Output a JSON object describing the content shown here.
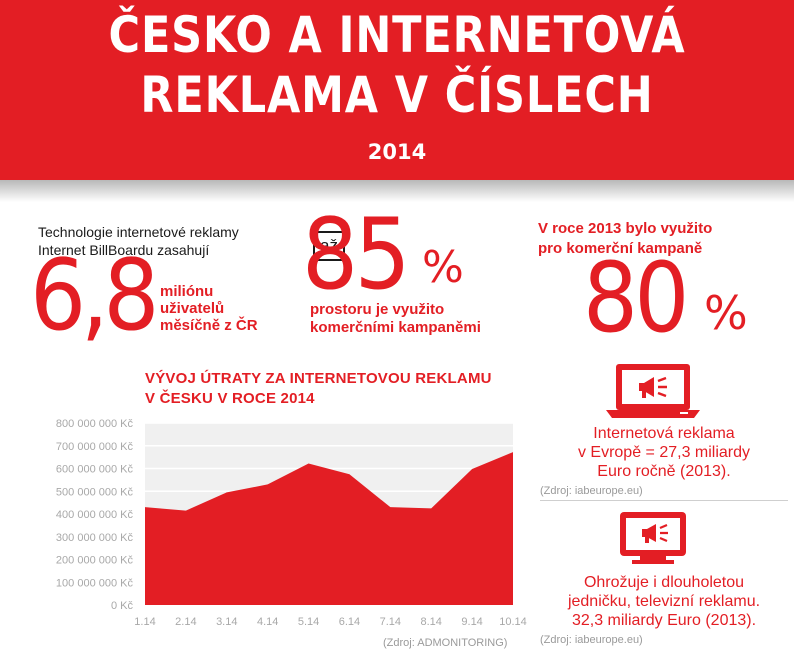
{
  "header": {
    "title_line1": "ČESKO A INTERNETOVÁ",
    "title_line2": "REKLAMA V ČÍSLECH",
    "year": "2014"
  },
  "stat1": {
    "intro_line1": "Technologie internetové reklamy",
    "intro_line2": "Internet BillBoardu zasahují",
    "number": "6,8",
    "unit_line1": "miliónu",
    "unit_line2": "uživatelů",
    "unit_line3": "měsíčně z ČR"
  },
  "stat2": {
    "prefix": "až",
    "number": "85",
    "percent": "%",
    "caption_line1": "prostoru je využito",
    "caption_line2": "komerčními kampaněmi"
  },
  "stat3": {
    "intro_line1": "V roce 2013 bylo využito",
    "intro_line2": "pro komerční kampaně",
    "number": "80",
    "percent": "%"
  },
  "europe": {
    "icon": "laptop-megaphone-icon",
    "line1": "Internetová reklama",
    "line2": "v Evropě = 27,3 miliardy",
    "line3": "Euro ročně (2013).",
    "source": "(Zdroj: iabeurope.eu)"
  },
  "tv": {
    "icon": "tv-megaphone-icon",
    "line1": "Ohrožuje i dlouholetou",
    "line2": "jedničku, televizní reklamu.",
    "line3": "32,3 miliardy Euro (2013).",
    "source": "(Zdroj: iabeurope.eu)"
  },
  "chart_data": {
    "type": "area",
    "title_line1": "VÝVOJ ÚTRATY ZA INTERNETOVOU REKLAMU",
    "title_line2": "V ČESKU V ROCE 2014",
    "categories": [
      "1.14",
      "2.14",
      "3.14",
      "4.14",
      "5.14",
      "6.14",
      "7.14",
      "8.14",
      "9.14",
      "10.14"
    ],
    "values": [
      430000000,
      415000000,
      495000000,
      530000000,
      622000000,
      575000000,
      430000000,
      425000000,
      598000000,
      672000000
    ],
    "ylim": [
      0,
      800000000
    ],
    "yticks": [
      "0 Kč",
      "100 000 000 Kč",
      "200 000 000 Kč",
      "300 000 000 Kč",
      "400 000 000 Kč",
      "500 000 000 Kč",
      "600 000 000 Kč",
      "700 000 000 Kč",
      "800 000 000 Kč"
    ],
    "grid": true,
    "source": "(Zdroj: ADMONITORING)",
    "color": "#e31e24"
  }
}
